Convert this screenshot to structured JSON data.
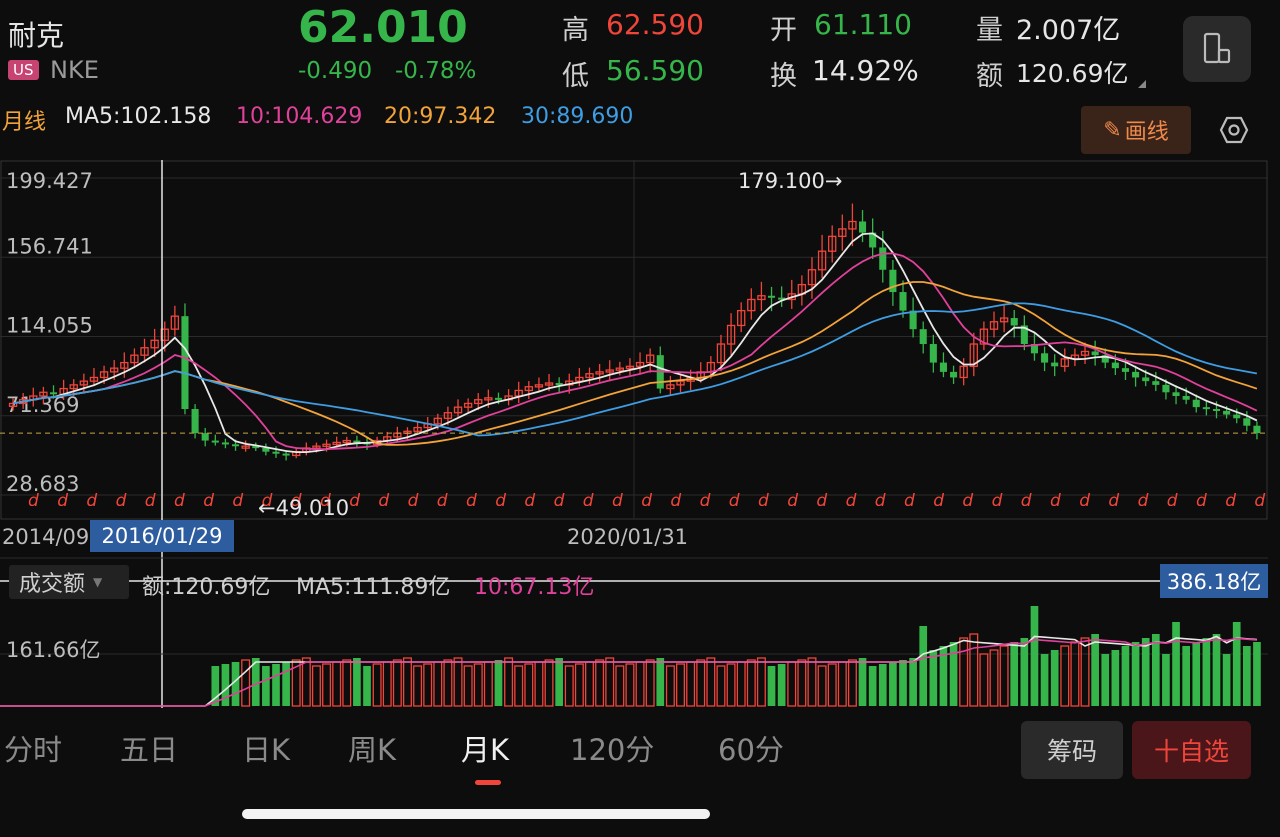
{
  "header": {
    "name": "耐克",
    "market": "US",
    "ticker": "NKE",
    "price": "62.010",
    "change": "-0.490",
    "change_pct": "-0.78%",
    "high_label": "高",
    "high": "62.590",
    "low_label": "低",
    "low": "56.590",
    "open_label": "开",
    "open": "61.110",
    "turnover_label": "换",
    "turnover": "14.92%",
    "volume_label": "量",
    "volume": "2.007亿",
    "amount_label": "额",
    "amount": "120.69亿"
  },
  "ma_row": {
    "period": "月线",
    "ma5": "MA5:102.158",
    "ma10": "10:104.629",
    "ma20": "20:97.342",
    "ma30": "30:89.690"
  },
  "draw_button": "画线",
  "colors": {
    "up": "#f0453a",
    "down": "#35b54a",
    "ma5": "#e8e8e8",
    "ma10": "#e0419a",
    "ma20": "#f2a33a",
    "ma30": "#3e9de3",
    "accent": "#2d5c9f"
  },
  "chart_data": {
    "type": "candlestick",
    "y_ticks": [
      "199.427",
      "156.741",
      "114.055",
      "71.369",
      "28.683"
    ],
    "ylim": [
      28.683,
      199.427
    ],
    "x_labels": [
      "2014/09",
      "2020/01/31"
    ],
    "crosshair_date": "2016/01/29",
    "max_annotation": "179.100→",
    "min_annotation": "←49.010",
    "last_price": 62.01,
    "close_series": [
      78,
      80,
      82,
      84,
      83,
      86,
      88,
      90,
      92,
      95,
      97,
      100,
      104,
      108,
      112,
      118,
      125,
      75,
      62,
      58,
      57,
      56,
      55,
      55,
      54,
      52,
      51,
      50,
      52,
      54,
      55,
      56,
      57,
      58,
      57,
      56,
      58,
      60,
      62,
      63,
      65,
      67,
      70,
      73,
      76,
      78,
      80,
      81,
      80,
      82,
      85,
      87,
      88,
      89,
      88,
      90,
      92,
      94,
      95,
      96,
      97,
      98,
      100,
      104,
      86,
      88,
      90,
      92,
      95,
      100,
      110,
      120,
      128,
      134,
      136,
      135,
      134,
      137,
      142,
      150,
      160,
      168,
      172,
      176,
      170,
      162,
      150,
      138,
      128,
      118,
      110,
      100,
      95,
      92,
      98,
      110,
      118,
      122,
      124,
      120,
      110,
      105,
      100,
      98,
      102,
      104,
      106,
      104,
      100,
      97,
      95,
      92,
      90,
      88,
      84,
      82,
      80,
      76,
      75,
      74,
      72,
      70,
      66,
      62
    ]
  },
  "volume": {
    "label": "成交额",
    "amount": "额:120.69亿",
    "ma5": "MA5:111.89亿",
    "ma10": "10:67.13亿",
    "y_tick": "161.66亿",
    "max_badge": "386.18亿"
  },
  "tabs": [
    "分时",
    "五日",
    "日K",
    "周K",
    "月K",
    "120分",
    "60分"
  ],
  "active_tab": "月K",
  "buttons": {
    "chips": "筹码",
    "watchlist": "十自选"
  }
}
